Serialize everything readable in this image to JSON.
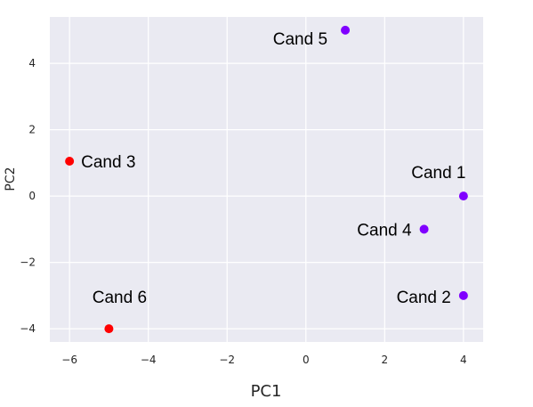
{
  "chart_data": {
    "type": "scatter",
    "title": "",
    "xlabel": "PC1",
    "ylabel": "PC2",
    "xlim": [
      -6.5,
      4.5
    ],
    "ylim": [
      -4.4,
      5.4
    ],
    "xticks": [
      -6,
      -4,
      -2,
      0,
      2,
      4
    ],
    "yticks": [
      -4,
      -2,
      0,
      2,
      4
    ],
    "xtick_labels": [
      "−6",
      "−4",
      "−2",
      "0",
      "2",
      "4"
    ],
    "ytick_labels": [
      "−4",
      "−2",
      "0",
      "2",
      "4"
    ],
    "grid": true,
    "background": "#eaeaf2",
    "points": [
      {
        "label": "Cand 1",
        "x": 4.0,
        "y": 0.0,
        "color": "#8000ff"
      },
      {
        "label": "Cand 2",
        "x": 4.0,
        "y": -3.0,
        "color": "#8000ff"
      },
      {
        "label": "Cand 3",
        "x": -6.0,
        "y": 1.05,
        "color": "#ff0000"
      },
      {
        "label": "Cand 4",
        "x": 3.0,
        "y": -1.0,
        "color": "#8000ff"
      },
      {
        "label": "Cand 5",
        "x": 1.0,
        "y": 5.0,
        "color": "#8000ff"
      },
      {
        "label": "Cand 6",
        "x": -5.0,
        "y": -4.0,
        "color": "#ff0000"
      }
    ]
  }
}
